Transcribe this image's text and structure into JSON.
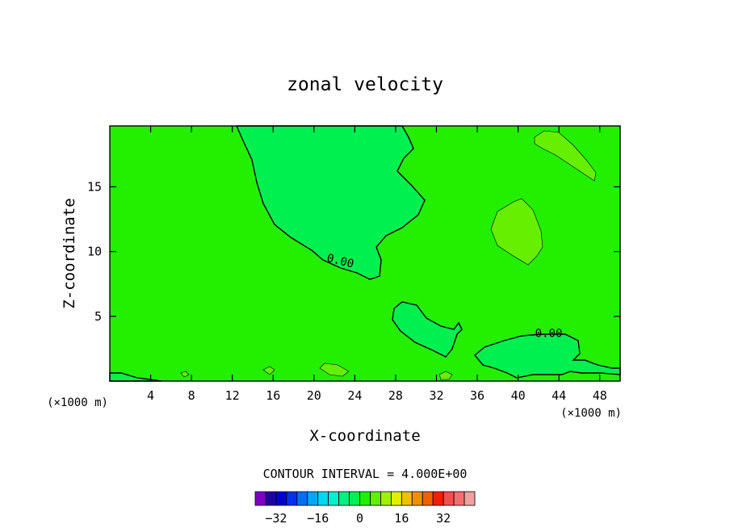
{
  "chart_data": {
    "type": "contour",
    "title": "zonal velocity",
    "xlabel": "X-coordinate",
    "ylabel": "Z-coordinate",
    "x_unit_left": "(×1000 m)",
    "x_unit_right": "(×1000 m)",
    "xlim": [
      0,
      50
    ],
    "ylim": [
      0,
      19.7
    ],
    "xticks": [
      4,
      8,
      12,
      16,
      20,
      24,
      28,
      32,
      36,
      40,
      44,
      48
    ],
    "yticks": [
      5,
      10,
      15
    ],
    "contour_labels": [
      {
        "text": "0.00",
        "x": 22.5,
        "y": 9.0
      },
      {
        "text": "0.00",
        "x": 43.0,
        "y": 3.4
      }
    ],
    "contour_interval_text": "CONTOUR INTERVAL = 4.000E+00",
    "colorbar": {
      "colors": [
        "#8000c0",
        "#2000a0",
        "#0000d0",
        "#0030f0",
        "#0070f0",
        "#00a8f0",
        "#00d8f0",
        "#00f0d0",
        "#00f080",
        "#00f050",
        "#20f000",
        "#60f000",
        "#a0f000",
        "#e0f000",
        "#f0c000",
        "#f09000",
        "#f06000",
        "#f02000",
        "#f05050",
        "#f07070",
        "#f0a0a0"
      ],
      "tick_labels": [
        "−32",
        "−16",
        "0",
        "16",
        "32"
      ],
      "tick_values": [
        -32,
        -16,
        0,
        16,
        32
      ],
      "min": -40,
      "max": 44
    },
    "background_color": "#22f000",
    "negative_region_color": "#00f050",
    "positive_region_color": "#66f000"
  }
}
